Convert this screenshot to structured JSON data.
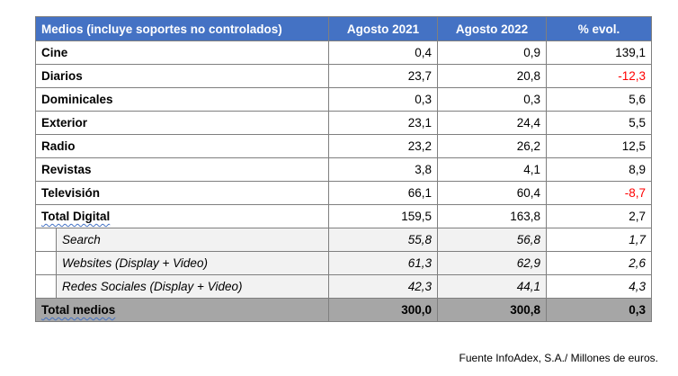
{
  "table": {
    "headers": [
      "Medios (incluye soportes no controlados)",
      "Agosto 2021",
      "Agosto 2022",
      "% evol."
    ],
    "rows": [
      {
        "label": "Cine",
        "v2021": "0,4",
        "v2022": "0,9",
        "evol": "139,1",
        "negative": false
      },
      {
        "label": "Diarios",
        "v2021": "23,7",
        "v2022": "20,8",
        "evol": "-12,3",
        "negative": true
      },
      {
        "label": "Dominicales",
        "v2021": "0,3",
        "v2022": "0,3",
        "evol": "5,6",
        "negative": false
      },
      {
        "label": "Exterior",
        "v2021": "23,1",
        "v2022": "24,4",
        "evol": "5,5",
        "negative": false
      },
      {
        "label": "Radio",
        "v2021": "23,2",
        "v2022": "26,2",
        "evol": "12,5",
        "negative": false
      },
      {
        "label": "Revistas",
        "v2021": "3,8",
        "v2022": "4,1",
        "evol": "8,9",
        "negative": false
      },
      {
        "label": "Televisión",
        "v2021": "66,1",
        "v2022": "60,4",
        "evol": "-8,7",
        "negative": true
      }
    ],
    "digital": {
      "label": "Total Digital",
      "v2021": "159,5",
      "v2022": "163,8",
      "evol": "2,7"
    },
    "digital_sub": [
      {
        "label": "Search",
        "v2021": "55,8",
        "v2022": "56,8",
        "evol": "1,7"
      },
      {
        "label": "Websites (Display + Video)",
        "v2021": "61,3",
        "v2022": "62,9",
        "evol": "2,6"
      },
      {
        "label": "Redes Sociales (Display + Video)",
        "v2021": "42,3",
        "v2022": "44,1",
        "evol": "4,3"
      }
    ],
    "total": {
      "label": "Total medios",
      "v2021": "300,0",
      "v2022": "300,8",
      "evol": "0,3"
    }
  },
  "source": "Fuente InfoAdex, S.A./ Millones de euros.",
  "colors": {
    "header_bg": "#4472c4",
    "negative": "#ff0000",
    "total_bg": "#a6a6a6",
    "sub_bg": "#f2f2f2"
  }
}
